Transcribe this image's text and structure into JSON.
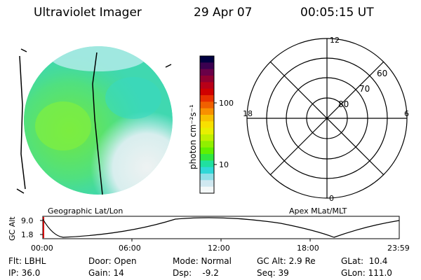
{
  "header": {
    "title": "Ultraviolet Imager",
    "date": "29 Apr 07",
    "time": "00:05:15 UT"
  },
  "colorbar": {
    "unit_label": "photon cm⁻²s⁻¹",
    "ticks": [
      "100",
      "10"
    ],
    "colors": [
      "#000040",
      "#3a0050",
      "#6a0048",
      "#900030",
      "#b80018",
      "#d00000",
      "#e83000",
      "#f06000",
      "#f89000",
      "#f8c000",
      "#f8e000",
      "#e8f000",
      "#c0f000",
      "#90f000",
      "#60f000",
      "#30e840",
      "#20e0a0",
      "#30d8d8",
      "#90e0e8",
      "#d0e8f0",
      "#f4f8f8"
    ]
  },
  "left_map": {
    "label": "Geographic Lat/Lon"
  },
  "polar_plot": {
    "label": "Apex MLat/MLT",
    "mlt_labels": [
      "12",
      "18",
      "6",
      "0"
    ],
    "mlat_labels": [
      "60",
      "70",
      "80"
    ]
  },
  "timeline": {
    "ylabel": "GC Alt",
    "yticks": [
      "9.0",
      "1.8"
    ],
    "xticks": [
      "00:00",
      "06:00",
      "12:00",
      "18:00",
      "23:59"
    ]
  },
  "status": {
    "flt": "Flt: LBHL",
    "ip": "IP: 36.0",
    "door": "Door: Open",
    "gain": "Gain: 14",
    "mode": "Mode: Normal",
    "dsp": "Dsp:    -9.2",
    "gcalt": "GC Alt: 2.9 Re",
    "seq": "Seq: 39",
    "glat": "GLat:  10.4",
    "glon": "GLon: 111.0"
  }
}
